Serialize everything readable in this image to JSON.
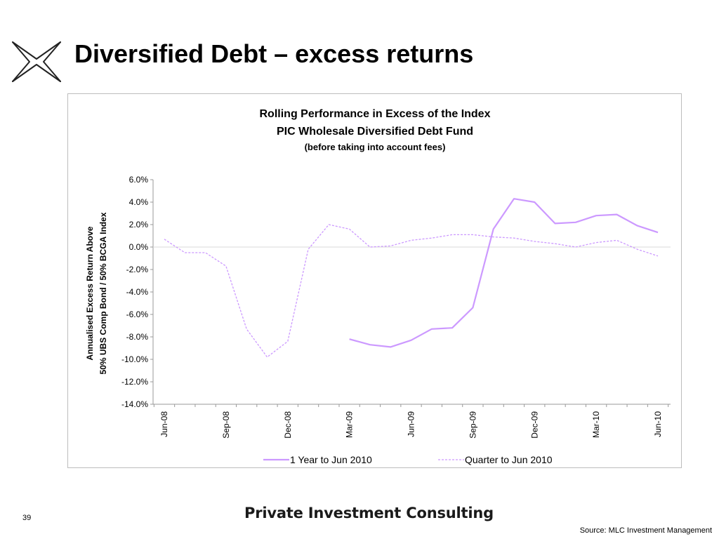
{
  "slide": {
    "title": "Diversified Debt – excess returns",
    "number": "39",
    "brand": "Private Investment Consulting",
    "source": "Source: MLC Investment Management"
  },
  "colors": {
    "line": "#cc99ff",
    "zero_line": "#d9d9d9",
    "axis": "#999999",
    "frame": "#bdbdbd"
  },
  "icons": {
    "logo": "x-logo-icon"
  },
  "chart_data": {
    "type": "line",
    "title_lines": [
      "Rolling Performance in Excess of the Index",
      "PIC Wholesale Diversified Debt Fund",
      "(before taking into account fees)"
    ],
    "ylabel_lines": [
      "Annualised Excess Return Above",
      "50% UBS Comp Bond / 50% BCGA Index"
    ],
    "xlabel": "",
    "ylim": [
      -14,
      6
    ],
    "yticks": [
      6,
      4,
      2,
      0,
      -2,
      -4,
      -6,
      -8,
      -10,
      -12,
      -14
    ],
    "ytick_labels": [
      "6.0%",
      "4.0%",
      "2.0%",
      "0.0%",
      "-2.0%",
      "-4.0%",
      "-6.0%",
      "-8.0%",
      "-10.0%",
      "-12.0%",
      "-14.0%"
    ],
    "x": [
      "Jun-08",
      "Jul-08",
      "Aug-08",
      "Sep-08",
      "Oct-08",
      "Nov-08",
      "Dec-08",
      "Jan-09",
      "Feb-09",
      "Mar-09",
      "Apr-09",
      "May-09",
      "Jun-09",
      "Jul-09",
      "Aug-09",
      "Sep-09",
      "Oct-09",
      "Nov-09",
      "Dec-09",
      "Jan-10",
      "Feb-10",
      "Mar-10",
      "Apr-10",
      "May-10",
      "Jun-10"
    ],
    "xtick_labels": [
      "Jun-08",
      "Sep-08",
      "Dec-08",
      "Mar-09",
      "Jun-09",
      "Sep-09",
      "Dec-09",
      "Mar-10",
      "Jun-10"
    ],
    "series": [
      {
        "name": "1 Year to Jun 2010",
        "style": "solid",
        "values": [
          null,
          null,
          null,
          null,
          null,
          null,
          null,
          null,
          null,
          -8.2,
          -8.7,
          -8.9,
          -8.3,
          -7.3,
          -7.2,
          -5.4,
          1.6,
          4.3,
          4.0,
          2.1,
          2.2,
          2.8,
          2.9,
          1.9,
          1.3
        ]
      },
      {
        "name": "Quarter to Jun 2010",
        "style": "dashed",
        "values": [
          0.7,
          -0.5,
          -0.5,
          -1.7,
          -7.3,
          -9.8,
          -8.4,
          -0.2,
          2.0,
          1.6,
          0.0,
          0.1,
          0.6,
          0.8,
          1.1,
          1.1,
          0.9,
          0.8,
          0.5,
          0.3,
          0.0,
          0.4,
          0.6,
          -0.2,
          -0.8
        ]
      }
    ],
    "grid": false,
    "legend_position": "bottom"
  }
}
